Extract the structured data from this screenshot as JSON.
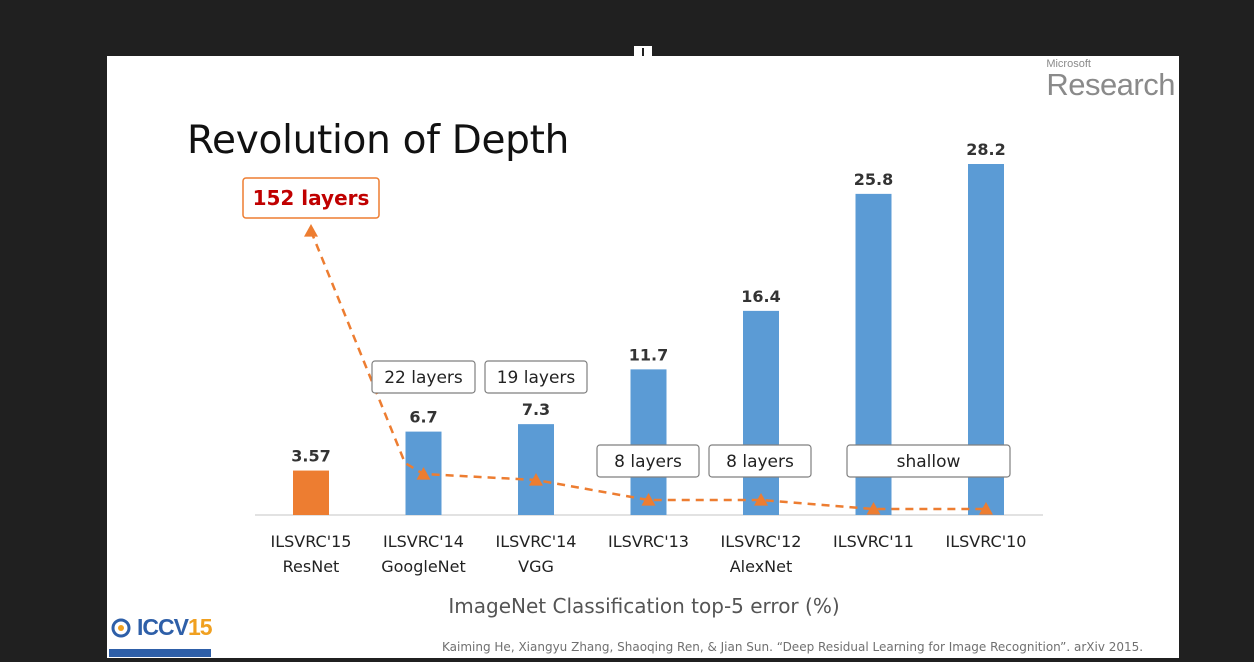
{
  "logo": {
    "small": "Microsoft",
    "big": "Research"
  },
  "title": "Revolution of Depth",
  "citation": "Kaiming He, Xiangyu Zhang, Shaoqing Ren, & Jian Sun. “Deep Residual Learning for Image Recognition”. arXiv 2015.",
  "iccv_logo": {
    "text": "ICCV",
    "year": "15"
  },
  "colors": {
    "highlight_bar": "#ED7D31",
    "bar": "#5B9BD5",
    "trend_line": "#ED7D31",
    "callout_text": "#C00000",
    "callout_border": "#ED7D31"
  },
  "chart_data": {
    "type": "bar",
    "title": "Revolution of Depth",
    "xlabel": "ImageNet Classification top-5 error (%)",
    "ylabel": "",
    "categories": [
      [
        "ILSVRC'15",
        "ResNet"
      ],
      [
        "ILSVRC'14",
        "GoogleNet"
      ],
      [
        "ILSVRC'14",
        "VGG"
      ],
      [
        "ILSVRC'13"
      ],
      [
        "ILSVRC'12",
        "AlexNet"
      ],
      [
        "ILSVRC'11"
      ],
      [
        "ILSVRC'10"
      ]
    ],
    "values": [
      3.57,
      6.7,
      7.3,
      11.7,
      16.4,
      25.8,
      28.2
    ],
    "value_labels": [
      "3.57",
      "6.7",
      "7.3",
      "11.7",
      "16.4",
      "25.8",
      "28.2"
    ],
    "ylim": [
      0,
      30
    ],
    "grid": false,
    "depth_labels": [
      {
        "text": "152 layers",
        "for": [
          0
        ],
        "emphasis": true
      },
      {
        "text": "22 layers",
        "for": [
          1
        ]
      },
      {
        "text": "19 layers",
        "for": [
          2
        ]
      },
      {
        "text": "8 layers",
        "for": [
          3
        ]
      },
      {
        "text": "8 layers",
        "for": [
          4
        ]
      },
      {
        "text": "shallow",
        "for": [
          5,
          6
        ]
      }
    ],
    "trend_line": {
      "style": "dashed",
      "marker": "triangle"
    }
  }
}
